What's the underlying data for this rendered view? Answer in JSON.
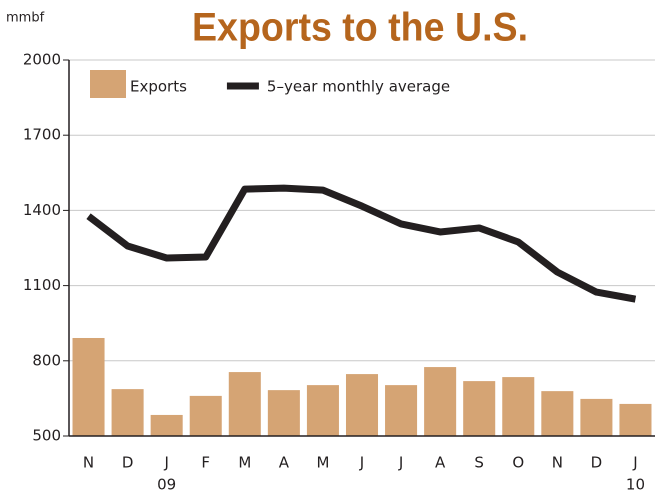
{
  "chart_data": {
    "type": "bar_line",
    "title": "Exports to the U.S.",
    "y_axis_label": "mmbf",
    "categories": [
      "N",
      "D",
      "J",
      "F",
      "M",
      "A",
      "M",
      "J",
      "J",
      "A",
      "S",
      "O",
      "N",
      "D",
      "J"
    ],
    "category_years": [
      null,
      null,
      "09",
      null,
      null,
      null,
      null,
      null,
      null,
      null,
      null,
      null,
      null,
      null,
      "10"
    ],
    "series": [
      {
        "name": "Exports",
        "kind": "bar",
        "color": "#d5a474",
        "values": [
          891,
          687,
          584,
          660,
          755,
          683,
          703,
          747,
          703,
          775,
          719,
          735,
          679,
          648,
          628
        ]
      },
      {
        "name": "5–year monthly average",
        "kind": "line",
        "color": "#231f20",
        "values": [
          1377,
          1258,
          1210,
          1214,
          1485,
          1489,
          1481,
          1417,
          1346,
          1314,
          1330,
          1274,
          1154,
          1074,
          1046
        ]
      }
    ],
    "ylim": [
      500,
      2000
    ],
    "yticks": [
      500,
      800,
      1100,
      1400,
      1700,
      2000
    ],
    "grid": true,
    "legend": "top-left"
  }
}
